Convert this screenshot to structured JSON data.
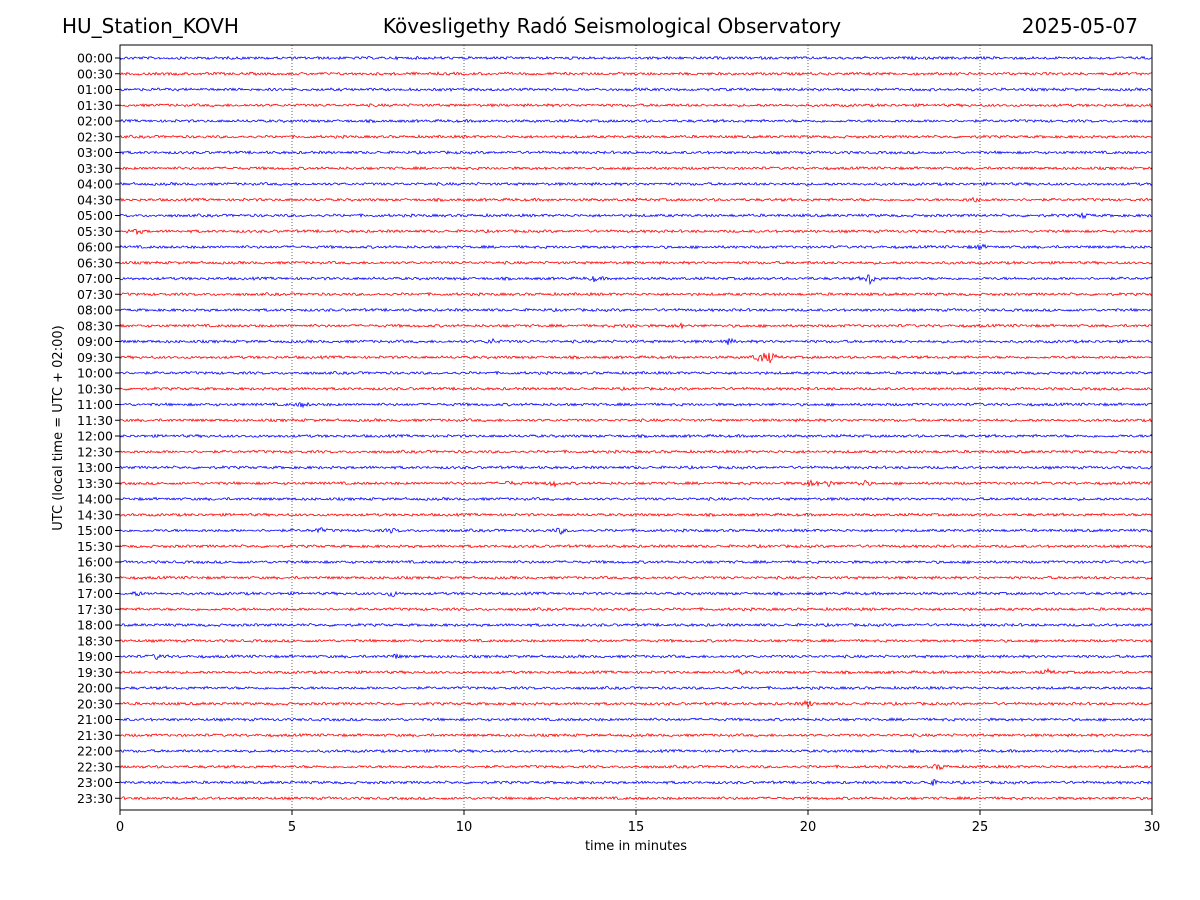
{
  "header": {
    "station": "HU_Station_KOVH",
    "observatory": "Kövesligethy Radó Seismological Observatory",
    "date": "2025-05-07"
  },
  "chart_data": {
    "type": "line",
    "title": "Kövesligethy Radó Seismological Observatory",
    "xlabel": "time in minutes",
    "ylabel": "UTC (local time = UTC + 02:00)",
    "xlim": [
      0,
      30
    ],
    "xticks": [
      0,
      5,
      10,
      15,
      20,
      25,
      30
    ],
    "grid": "vertical dotted at x ticks",
    "trace_colors": [
      "#0000ff",
      "#ff0000"
    ],
    "rows": [
      "00:00",
      "00:30",
      "01:00",
      "01:30",
      "02:00",
      "02:30",
      "03:00",
      "03:30",
      "04:00",
      "04:30",
      "05:00",
      "05:30",
      "06:00",
      "06:30",
      "07:00",
      "07:30",
      "08:00",
      "08:30",
      "09:00",
      "09:30",
      "10:00",
      "10:30",
      "11:00",
      "11:30",
      "12:00",
      "12:30",
      "13:00",
      "13:30",
      "14:00",
      "14:30",
      "15:00",
      "15:30",
      "16:00",
      "16:30",
      "17:00",
      "17:30",
      "18:00",
      "18:30",
      "19:00",
      "19:30",
      "20:00",
      "20:30",
      "21:00",
      "21:30",
      "22:00",
      "22:30",
      "23:00",
      "23:30"
    ],
    "events": [
      {
        "row": "07:00",
        "minute": 21.8,
        "amplitude": 6
      },
      {
        "row": "07:00",
        "minute": 13.8,
        "amplitude": 2.5
      },
      {
        "row": "08:30",
        "minute": 14.8,
        "amplitude": 2
      },
      {
        "row": "08:30",
        "minute": 16.3,
        "amplitude": 2
      },
      {
        "row": "09:00",
        "minute": 10.8,
        "amplitude": 2.5
      },
      {
        "row": "09:00",
        "minute": 17.7,
        "amplitude": 2.5
      },
      {
        "row": "09:30",
        "minute": 18.6,
        "amplitude": 6
      },
      {
        "row": "09:30",
        "minute": 18.9,
        "amplitude": 5
      },
      {
        "row": "13:30",
        "minute": 12.6,
        "amplitude": 3
      },
      {
        "row": "13:30",
        "minute": 20.1,
        "amplitude": 3.5
      },
      {
        "row": "13:30",
        "minute": 20.6,
        "amplitude": 3
      },
      {
        "row": "13:30",
        "minute": 21.6,
        "amplitude": 3.5
      },
      {
        "row": "13:30",
        "minute": 11.3,
        "amplitude": 2
      },
      {
        "row": "15:00",
        "minute": 5.8,
        "amplitude": 2.5
      },
      {
        "row": "15:00",
        "minute": 7.9,
        "amplitude": 2
      },
      {
        "row": "15:00",
        "minute": 12.8,
        "amplitude": 3
      },
      {
        "row": "17:00",
        "minute": 7.9,
        "amplitude": 3
      },
      {
        "row": "17:00",
        "minute": 0.5,
        "amplitude": 2
      },
      {
        "row": "19:00",
        "minute": 1.1,
        "amplitude": 3
      },
      {
        "row": "19:00",
        "minute": 8.0,
        "amplitude": 2
      },
      {
        "row": "19:30",
        "minute": 18.0,
        "amplitude": 2
      },
      {
        "row": "19:30",
        "minute": 27.0,
        "amplitude": 2.5
      },
      {
        "row": "20:30",
        "minute": 20.0,
        "amplitude": 3.5
      },
      {
        "row": "22:30",
        "minute": 23.8,
        "amplitude": 3
      },
      {
        "row": "23:00",
        "minute": 23.6,
        "amplitude": 3
      },
      {
        "row": "11:00",
        "minute": 5.3,
        "amplitude": 2.5
      },
      {
        "row": "05:30",
        "minute": 0.5,
        "amplitude": 2.5
      },
      {
        "row": "04:30",
        "minute": 24.8,
        "amplitude": 3
      },
      {
        "row": "06:00",
        "minute": 25.0,
        "amplitude": 2.5
      },
      {
        "row": "05:00",
        "minute": 28.0,
        "amplitude": 2.5
      }
    ]
  }
}
